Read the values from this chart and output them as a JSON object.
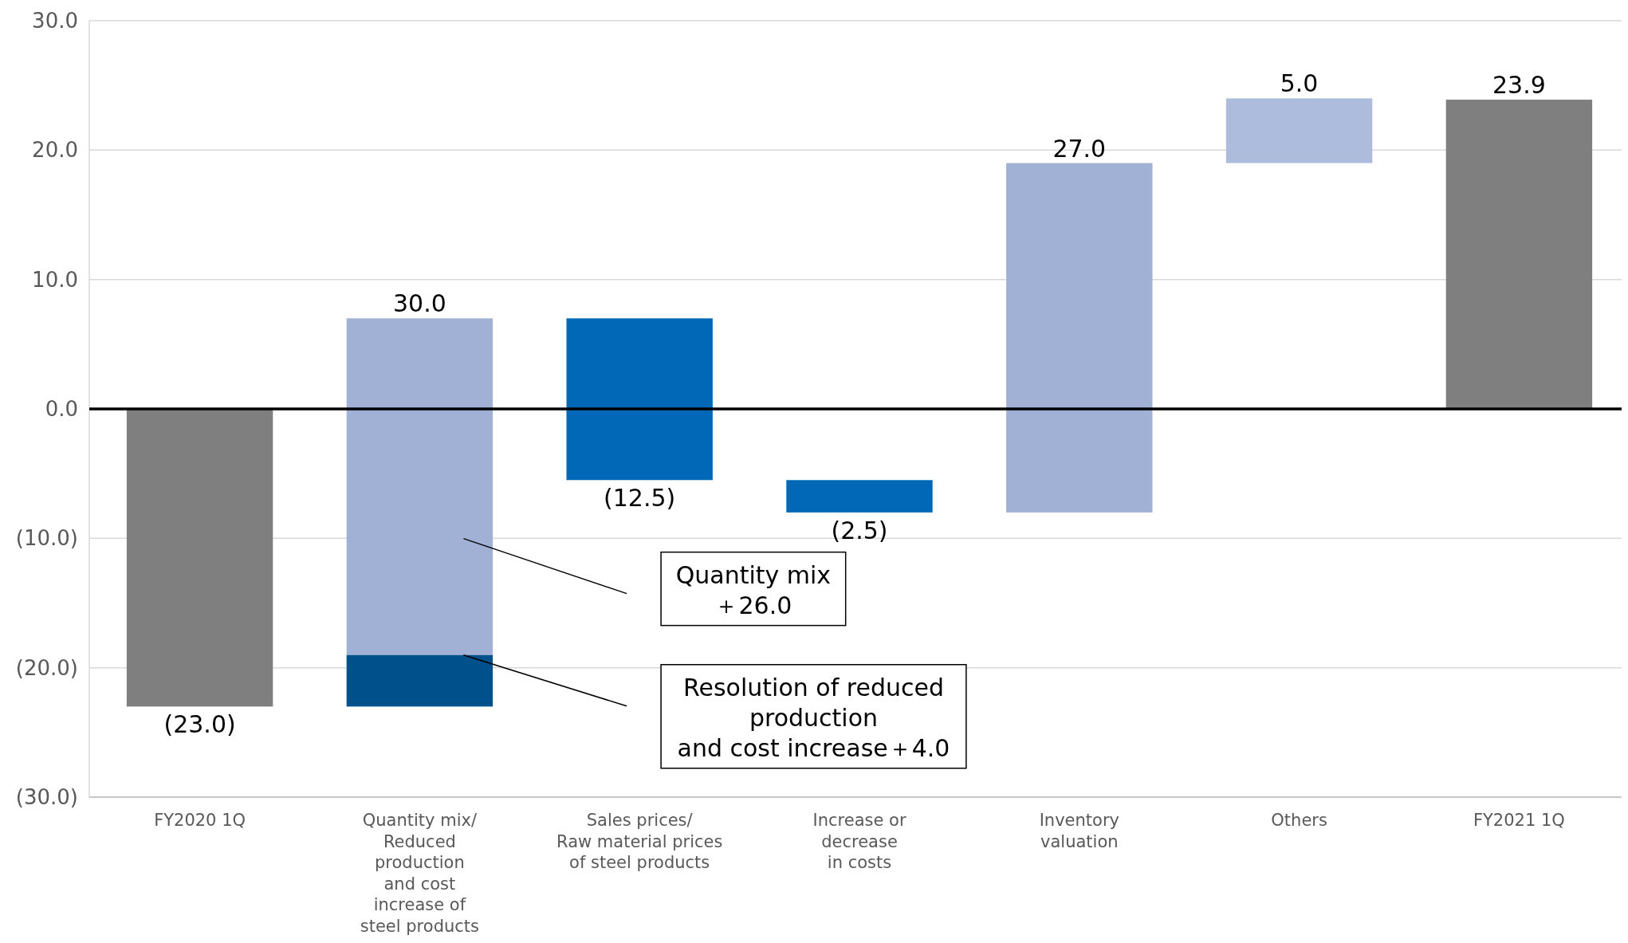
{
  "chart_data": {
    "type": "bar",
    "categories": [
      "FY2020 1Q",
      "Quantity mix/\nReduced\nproduction\nand cost\nincrease of\nsteel products",
      "Sales prices/\nRaw material prices\nof steel products",
      "Increase or\ndecrease\nin costs",
      "Inventory\nvaluation",
      "Others",
      "FY2021 1Q"
    ],
    "series": [
      {
        "type": "bar",
        "base": [
          0,
          -23,
          7,
          -5.5,
          -8,
          19,
          0
        ],
        "colors": [
          "#7f7f7f",
          "#00508c",
          "#0068b7",
          "#0068b7",
          "#a1b1d5",
          "#adbbdc",
          "#7f7f7f"
        ],
        "values": [
          -23,
          4,
          -12.5,
          -2.5,
          27,
          5,
          23.9
        ],
        "value_labels": [
          "(23.0)",
          null,
          "(12.5)",
          "(2.5)",
          "27.0",
          "5.0",
          "23.9"
        ]
      },
      {
        "type": "bar",
        "base": [
          null,
          -19,
          null,
          null,
          null,
          null,
          null
        ],
        "color": "#a1b1d5",
        "values": [
          null,
          26,
          null,
          null,
          null,
          null,
          null
        ]
      }
    ],
    "totals": [
      null,
      "30.0",
      null,
      null,
      null,
      null,
      null
    ],
    "ylim": [
      -30,
      30
    ],
    "yticks": [
      {
        "value": -30,
        "label": "(30.0)"
      },
      {
        "value": -20,
        "label": "(20.0)"
      },
      {
        "value": -10,
        "label": "(10.0)"
      },
      {
        "value": 0,
        "label": "0.0"
      },
      {
        "value": 10,
        "label": "10.0"
      },
      {
        "value": 20,
        "label": "20.0"
      },
      {
        "value": 30,
        "label": "30.0"
      }
    ],
    "grid": "y",
    "ref_lines": [
      {
        "axis": "y",
        "value": 0,
        "color": "#000000"
      }
    ],
    "annotations": [
      "Quantity mix\n＋26.0",
      "Resolution of reduced\nproduction\nand cost increase＋4.0"
    ]
  }
}
